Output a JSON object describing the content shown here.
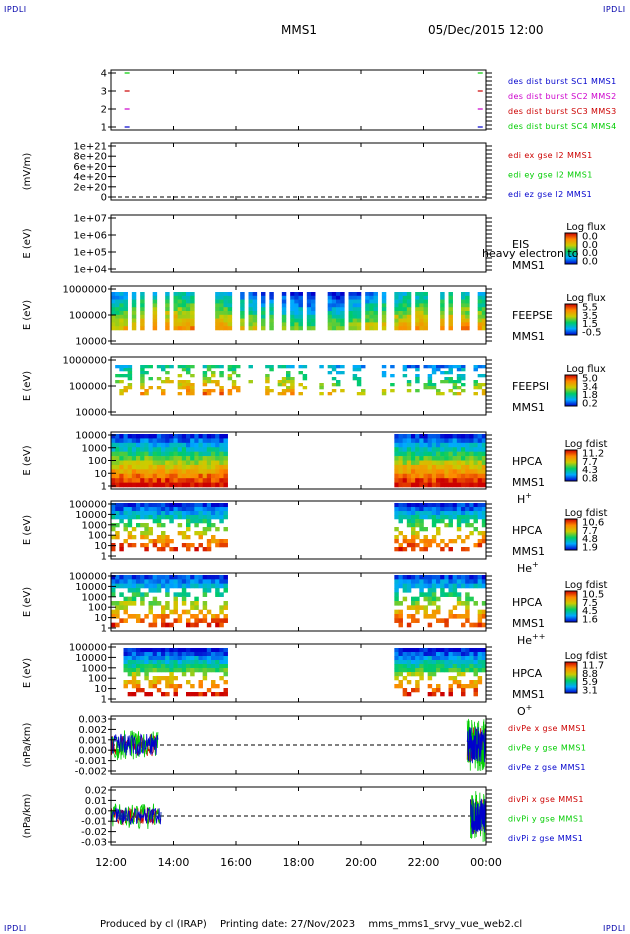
{
  "header": {
    "corner_label": "IPDLI",
    "spacecraft": "MMS1",
    "datetime": "05/Dec/2015 12:00"
  },
  "footer": {
    "produced_by": "Produced by cl (IRAP)",
    "printing_date": "Printing date: 27/Nov/2023",
    "product": "mms_mms1_srvy_vue_web2.cl"
  },
  "chart_data": {
    "type": "multi-panel time series",
    "x_axis": {
      "ticks": [
        "12:00",
        "14:00",
        "16:00",
        "18:00",
        "20:00",
        "22:00",
        "00:00"
      ],
      "range_hours": [
        12,
        24
      ]
    },
    "panels": [
      {
        "id": "burst",
        "type": "line",
        "ylabel": "",
        "yticks": [
          "4",
          "3",
          "2",
          "1"
        ],
        "yvalues": [
          4,
          3,
          2,
          1
        ],
        "series": [
          {
            "name": "des dist burst SC1 MMS1",
            "color": "#0000cc",
            "value": 1,
            "times": [
              12.5,
              23.8
            ]
          },
          {
            "name": "des dist burst SC2 MMS2",
            "color": "#cc00cc",
            "value": 2,
            "times": [
              12.5,
              23.8
            ]
          },
          {
            "name": "des dist burst SC3 MMS3",
            "color": "#cc0000",
            "value": 3,
            "times": [
              12.5,
              23.8
            ]
          },
          {
            "name": "des dist burst SC4 MMS4",
            "color": "#00cc00",
            "value": 4,
            "times": [
              12.5,
              23.8
            ]
          }
        ]
      },
      {
        "id": "edi",
        "type": "line",
        "ylabel": "(mV/m)",
        "yticks": [
          "1e+21",
          "8e+20",
          "6e+20",
          "4e+20",
          "2e+20",
          "0"
        ],
        "series": [
          {
            "name": "edi ex gse l2 MMS1",
            "color": "#cc0000"
          },
          {
            "name": "edi ey gse l2 MMS1",
            "color": "#00cc00"
          },
          {
            "name": "edi ez gse l2 MMS1",
            "color": "#0000cc"
          }
        ]
      },
      {
        "id": "eis",
        "type": "heatmap",
        "ylabel": "E (eV)",
        "yticks": [
          "1e+07",
          "1e+06",
          "1e+05",
          "1e+04"
        ],
        "instrument": "EIS",
        "extra_label": "heavy electron to",
        "spacecraft": "MMS1",
        "colorbar_title": "Log flux",
        "colorbar_ticks": [
          "0.0",
          "0.0",
          "0.0",
          "0.0"
        ]
      },
      {
        "id": "feepse",
        "type": "heatmap",
        "ylabel": "E (eV)",
        "yticks": [
          "1000000",
          "100000",
          "10000"
        ],
        "instrument": "FEEPSE",
        "spacecraft": "MMS1",
        "colorbar_title": "Log flux",
        "colorbar_ticks": [
          "5.5",
          "3.5",
          "1.5",
          "-0.5"
        ]
      },
      {
        "id": "feepsi",
        "type": "heatmap",
        "ylabel": "E (eV)",
        "yticks": [
          "1000000",
          "100000",
          "10000"
        ],
        "instrument": "FEEPSI",
        "spacecraft": "MMS1",
        "colorbar_title": "Log flux",
        "colorbar_ticks": [
          "5.0",
          "3.4",
          "1.8",
          "0.2"
        ]
      },
      {
        "id": "hpca_h",
        "type": "heatmap",
        "ylabel": "E (eV)",
        "yticks": [
          "10000",
          "1000",
          "100",
          "10",
          "1"
        ],
        "instrument": "HPCA",
        "spacecraft": "MMS1",
        "species": "H",
        "species_sup": "+",
        "colorbar_title": "Log fdist",
        "colorbar_ticks": [
          "11.2",
          "7.7",
          "4.3",
          "0.8"
        ]
      },
      {
        "id": "hpca_he",
        "type": "heatmap",
        "ylabel": "E (eV)",
        "yticks": [
          "100000",
          "10000",
          "1000",
          "100",
          "10",
          "1"
        ],
        "instrument": "HPCA",
        "spacecraft": "MMS1",
        "species": "He",
        "species_sup": "+",
        "colorbar_title": "Log fdist",
        "colorbar_ticks": [
          "10.6",
          "7.7",
          "4.8",
          "1.9"
        ]
      },
      {
        "id": "hpca_he2",
        "type": "heatmap",
        "ylabel": "E (eV)",
        "yticks": [
          "100000",
          "10000",
          "1000",
          "100",
          "10",
          "1"
        ],
        "instrument": "HPCA",
        "spacecraft": "MMS1",
        "species": "He",
        "species_sup": "++",
        "colorbar_title": "Log fdist",
        "colorbar_ticks": [
          "10.5",
          "7.5",
          "4.5",
          "1.6"
        ]
      },
      {
        "id": "hpca_o",
        "type": "heatmap",
        "ylabel": "E (eV)",
        "yticks": [
          "100000",
          "10000",
          "1000",
          "100",
          "10",
          "1"
        ],
        "instrument": "HPCA",
        "spacecraft": "MMS1",
        "species": "O",
        "species_sup": "+",
        "colorbar_title": "Log fdist",
        "colorbar_ticks": [
          "11.7",
          "8.8",
          "5.9",
          "3.1"
        ]
      },
      {
        "id": "divpe",
        "type": "line",
        "ylabel": "(nPa/km)",
        "yticks": [
          "0.003",
          "0.002",
          "0.001",
          "0.000",
          "-0.001",
          "-0.002"
        ],
        "yvalues": [
          0.003,
          0.002,
          0.001,
          0.0,
          -0.001,
          -0.002
        ],
        "ylim": [
          -0.0025,
          0.0035
        ],
        "series": [
          {
            "name": "divPe x gse MMS1",
            "color": "#cc0000"
          },
          {
            "name": "divPe y gse MMS1",
            "color": "#00cc00"
          },
          {
            "name": "divPe z gse MMS1",
            "color": "#0000cc"
          }
        ]
      },
      {
        "id": "divpi",
        "type": "line",
        "ylabel": "(nPa/km)",
        "yticks": [
          "0.02",
          "0.01",
          "0.00",
          "-0.01",
          "-0.02",
          "-0.03"
        ],
        "yvalues": [
          0.02,
          0.01,
          0.0,
          -0.01,
          -0.02,
          -0.03
        ],
        "ylim": [
          -0.035,
          0.025
        ],
        "series": [
          {
            "name": "divPi x gse MMS1",
            "color": "#cc0000"
          },
          {
            "name": "divPi y gse MMS1",
            "color": "#00cc00"
          },
          {
            "name": "divPi z gse MMS1",
            "color": "#0000cc"
          }
        ]
      }
    ]
  }
}
